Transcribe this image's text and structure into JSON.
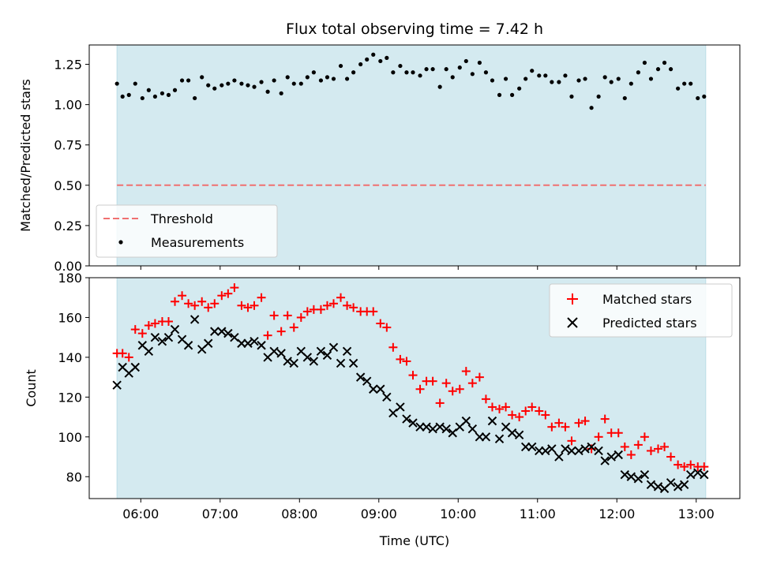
{
  "chart_data": [
    {
      "type": "scatter",
      "title": "Flux total observing time = 7.42 h",
      "ylabel": "Matched/Predicted stars",
      "xlabel": "",
      "xlim": [
        5.35,
        13.55
      ],
      "ylim": [
        0,
        1.37
      ],
      "yticks": [
        0.0,
        0.25,
        0.5,
        0.75,
        1.0,
        1.25
      ],
      "ytick_labels": [
        "0.00",
        "0.25",
        "0.50",
        "0.75",
        "1.00",
        "1.25"
      ],
      "shaded_span": [
        5.7,
        13.12
      ],
      "shade_color": "#d4eaf0",
      "threshold": {
        "name": "Threshold",
        "value": 0.5,
        "color": "#f07070"
      },
      "legend": {
        "position": "lower-left",
        "entries": [
          "Threshold",
          "Measurements"
        ]
      },
      "series": [
        {
          "name": "Measurements",
          "marker": "dot",
          "color": "#000000",
          "x": [
            5.7,
            5.77,
            5.85,
            5.93,
            6.02,
            6.1,
            6.18,
            6.27,
            6.35,
            6.43,
            6.52,
            6.6,
            6.68,
            6.77,
            6.85,
            6.93,
            7.02,
            7.1,
            7.18,
            7.27,
            7.35,
            7.43,
            7.52,
            7.6,
            7.68,
            7.77,
            7.85,
            7.93,
            8.02,
            8.1,
            8.18,
            8.27,
            8.35,
            8.43,
            8.52,
            8.6,
            8.68,
            8.77,
            8.85,
            8.93,
            9.02,
            9.1,
            9.18,
            9.27,
            9.35,
            9.43,
            9.52,
            9.6,
            9.68,
            9.77,
            9.85,
            9.93,
            10.02,
            10.1,
            10.18,
            10.27,
            10.35,
            10.43,
            10.52,
            10.6,
            10.68,
            10.77,
            10.85,
            10.93,
            11.02,
            11.1,
            11.18,
            11.27,
            11.35,
            11.43,
            11.52,
            11.6,
            11.68,
            11.77,
            11.85,
            11.93,
            12.02,
            12.1,
            12.18,
            12.27,
            12.35,
            12.43,
            12.52,
            12.6,
            12.68,
            12.77,
            12.85,
            12.93,
            13.02,
            13.1
          ],
          "values": [
            1.13,
            1.05,
            1.06,
            1.13,
            1.04,
            1.09,
            1.05,
            1.07,
            1.06,
            1.09,
            1.15,
            1.15,
            1.04,
            1.17,
            1.12,
            1.1,
            1.12,
            1.13,
            1.15,
            1.13,
            1.12,
            1.11,
            1.14,
            1.08,
            1.15,
            1.07,
            1.17,
            1.13,
            1.13,
            1.17,
            1.2,
            1.15,
            1.17,
            1.16,
            1.24,
            1.16,
            1.2,
            1.25,
            1.28,
            1.31,
            1.27,
            1.29,
            1.2,
            1.24,
            1.2,
            1.2,
            1.18,
            1.22,
            1.22,
            1.11,
            1.22,
            1.17,
            1.23,
            1.27,
            1.19,
            1.26,
            1.2,
            1.15,
            1.06,
            1.16,
            1.06,
            1.1,
            1.16,
            1.21,
            1.18,
            1.18,
            1.14,
            1.14,
            1.18,
            1.05,
            1.15,
            1.16,
            0.98,
            1.05,
            1.17,
            1.14,
            1.16,
            1.04,
            1.13,
            1.2,
            1.26,
            1.16,
            1.22,
            1.26,
            1.22,
            1.1,
            1.13,
            1.13,
            1.04,
            1.05
          ]
        }
      ]
    },
    {
      "type": "scatter",
      "title": "",
      "ylabel": "Count",
      "xlabel": "Time (UTC)",
      "xlim": [
        5.35,
        13.55
      ],
      "ylim": [
        69,
        180
      ],
      "yticks": [
        80,
        100,
        120,
        140,
        160,
        180
      ],
      "ytick_labels": [
        "80",
        "100",
        "120",
        "140",
        "160",
        "180"
      ],
      "xticks": [
        6,
        7,
        8,
        9,
        10,
        11,
        12,
        13
      ],
      "xtick_labels": [
        "06:00",
        "07:00",
        "08:00",
        "09:00",
        "10:00",
        "11:00",
        "12:00",
        "13:00"
      ],
      "shaded_span": [
        5.7,
        13.12
      ],
      "shade_color": "#d4eaf0",
      "legend": {
        "position": "upper-right",
        "entries": [
          "Matched stars",
          "Predicted stars"
        ]
      },
      "series": [
        {
          "name": "Matched stars",
          "marker": "plus",
          "color": "#ff0000",
          "x": [
            5.7,
            5.77,
            5.85,
            5.93,
            6.02,
            6.1,
            6.18,
            6.27,
            6.35,
            6.43,
            6.52,
            6.6,
            6.68,
            6.77,
            6.85,
            6.93,
            7.02,
            7.1,
            7.18,
            7.27,
            7.35,
            7.43,
            7.52,
            7.6,
            7.68,
            7.77,
            7.85,
            7.93,
            8.02,
            8.1,
            8.18,
            8.27,
            8.35,
            8.43,
            8.52,
            8.6,
            8.68,
            8.77,
            8.85,
            8.93,
            9.02,
            9.1,
            9.18,
            9.27,
            9.35,
            9.43,
            9.52,
            9.6,
            9.68,
            9.77,
            9.85,
            9.93,
            10.02,
            10.1,
            10.18,
            10.27,
            10.35,
            10.43,
            10.52,
            10.6,
            10.68,
            10.77,
            10.85,
            10.93,
            11.02,
            11.1,
            11.18,
            11.27,
            11.35,
            11.43,
            11.52,
            11.6,
            11.68,
            11.77,
            11.85,
            11.93,
            12.02,
            12.1,
            12.18,
            12.27,
            12.35,
            12.43,
            12.52,
            12.6,
            12.68,
            12.77,
            12.85,
            12.93,
            13.02,
            13.1
          ],
          "values": [
            142,
            142,
            140,
            154,
            152,
            156,
            157,
            158,
            158,
            168,
            171,
            167,
            166,
            168,
            165,
            167,
            171,
            172,
            175,
            166,
            165,
            166,
            170,
            151,
            161,
            153,
            161,
            155,
            160,
            163,
            164,
            164,
            166,
            167,
            170,
            166,
            165,
            163,
            163,
            163,
            157,
            155,
            145,
            139,
            138,
            131,
            124,
            128,
            128,
            117,
            127,
            123,
            124,
            133,
            127,
            130,
            119,
            115,
            114,
            115,
            111,
            110,
            113,
            115,
            113,
            111,
            105,
            107,
            105,
            98,
            107,
            108,
            94,
            100,
            109,
            102,
            102,
            95,
            91,
            96,
            100,
            93,
            94,
            95,
            90,
            86,
            85,
            86,
            85,
            85
          ]
        },
        {
          "name": "Predicted stars",
          "marker": "x",
          "color": "#000000",
          "x": [
            5.7,
            5.77,
            5.85,
            5.93,
            6.02,
            6.1,
            6.18,
            6.27,
            6.35,
            6.43,
            6.52,
            6.6,
            6.68,
            6.77,
            6.85,
            6.93,
            7.02,
            7.1,
            7.18,
            7.27,
            7.35,
            7.43,
            7.52,
            7.6,
            7.68,
            7.77,
            7.85,
            7.93,
            8.02,
            8.1,
            8.18,
            8.27,
            8.35,
            8.43,
            8.52,
            8.6,
            8.68,
            8.77,
            8.85,
            8.93,
            9.02,
            9.1,
            9.18,
            9.27,
            9.35,
            9.43,
            9.52,
            9.6,
            9.68,
            9.77,
            9.85,
            9.93,
            10.02,
            10.1,
            10.18,
            10.27,
            10.35,
            10.43,
            10.52,
            10.6,
            10.68,
            10.77,
            10.85,
            10.93,
            11.02,
            11.1,
            11.18,
            11.27,
            11.35,
            11.43,
            11.52,
            11.6,
            11.68,
            11.77,
            11.85,
            11.93,
            12.02,
            12.1,
            12.18,
            12.27,
            12.35,
            12.43,
            12.52,
            12.6,
            12.68,
            12.77,
            12.85,
            12.93,
            13.02,
            13.1
          ],
          "values": [
            126,
            135,
            132,
            135,
            146,
            143,
            150,
            148,
            150,
            154,
            149,
            146,
            159,
            144,
            147,
            153,
            153,
            152,
            150,
            147,
            147,
            148,
            146,
            140,
            143,
            142,
            138,
            137,
            143,
            140,
            138,
            143,
            141,
            145,
            137,
            143,
            137,
            130,
            128,
            124,
            124,
            120,
            112,
            115,
            109,
            107,
            105,
            105,
            104,
            105,
            104,
            102,
            105,
            108,
            104,
            100,
            100,
            108,
            99,
            105,
            102,
            101,
            95,
            95,
            93,
            93,
            94,
            90,
            94,
            93,
            93,
            94,
            95,
            93,
            88,
            90,
            91,
            81,
            80,
            79,
            81,
            76,
            75,
            74,
            77,
            75,
            76,
            81,
            82,
            81
          ]
        }
      ]
    }
  ]
}
